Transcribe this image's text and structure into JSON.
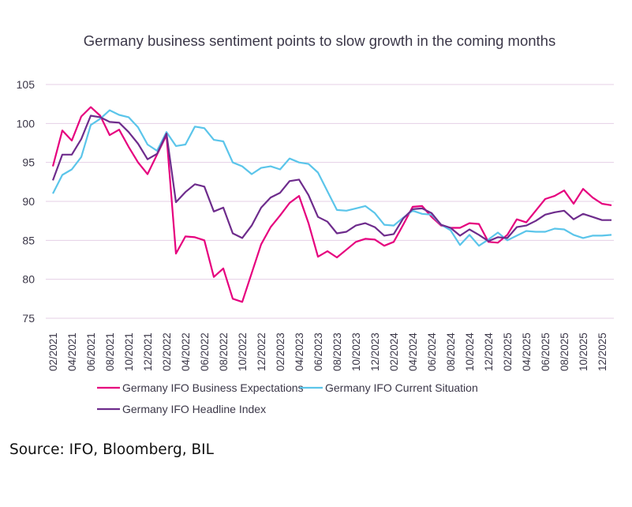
{
  "chart_data": {
    "type": "line",
    "title": "Germany business sentiment points to slow growth in the coming months",
    "xlabel": "",
    "ylabel": "",
    "ylim": [
      75,
      105
    ],
    "yticks": [
      75,
      80,
      85,
      90,
      95,
      100,
      105
    ],
    "grid": true,
    "legend_position": "bottom",
    "x": [
      "02/2021",
      "03/2021",
      "04/2021",
      "05/2021",
      "06/2021",
      "07/2021",
      "08/2021",
      "09/2021",
      "10/2021",
      "11/2021",
      "12/2021",
      "01/2022",
      "02/2022",
      "03/2022",
      "04/2022",
      "05/2022",
      "06/2022",
      "07/2022",
      "08/2022",
      "09/2022",
      "10/2022",
      "11/2022",
      "12/2022",
      "01/2023",
      "02/2023",
      "03/2023",
      "04/2023",
      "05/2023",
      "06/2023",
      "07/2023",
      "08/2023",
      "09/2023",
      "10/2023",
      "11/2023",
      "12/2023",
      "01/2024",
      "02/2024",
      "03/2024",
      "04/2024",
      "05/2024",
      "06/2024",
      "07/2024",
      "08/2024",
      "09/2024",
      "10/2024",
      "11/2024",
      "12/2024",
      "01/2025",
      "02/2025",
      "03/2025",
      "04/2025",
      "05/2025",
      "06/2025",
      "07/2025",
      "08/2025",
      "09/2025",
      "10/2025",
      "11/2025",
      "12/2025",
      "01/2026"
    ],
    "xtick_labels": [
      "02/2021",
      "04/2021",
      "06/2021",
      "08/2021",
      "10/2021",
      "12/2021",
      "02/2022",
      "04/2022",
      "06/2022",
      "08/2022",
      "10/2022",
      "12/2022",
      "02/2023",
      "04/2023",
      "06/2023",
      "08/2023",
      "10/2023",
      "12/2023",
      "02/2024",
      "04/2024",
      "06/2024",
      "08/2024",
      "10/2024",
      "12/2024",
      "02/2025",
      "04/2025",
      "06/2025",
      "08/2025",
      "10/2025",
      "12/2025"
    ],
    "series": [
      {
        "name": "Germany IFO Business Expectations",
        "color": "#e6007e",
        "values": [
          94.5,
          99.1,
          97.8,
          100.9,
          102.1,
          101.0,
          98.5,
          99.2,
          97.0,
          95.0,
          93.5,
          96.0,
          98.5,
          83.3,
          85.5,
          85.4,
          85.0,
          80.3,
          81.4,
          77.5,
          77.1,
          80.8,
          84.5,
          86.7,
          88.2,
          89.8,
          90.7,
          87.2,
          82.9,
          83.6,
          82.8,
          83.8,
          84.8,
          85.2,
          85.1,
          84.3,
          84.8,
          87.0,
          89.3,
          89.4,
          88.0,
          86.9,
          86.6,
          86.6,
          87.2,
          87.1,
          84.8,
          84.7,
          85.7,
          87.7,
          87.3,
          88.8,
          90.3,
          90.7,
          91.4,
          89.7,
          91.6,
          90.5,
          89.7,
          89.5
        ]
      },
      {
        "name": "Germany IFO Current Situation",
        "color": "#5bc5ea",
        "values": [
          91.0,
          93.4,
          94.1,
          95.7,
          99.8,
          100.6,
          101.7,
          101.1,
          100.8,
          99.5,
          97.3,
          96.5,
          98.9,
          97.1,
          97.3,
          99.6,
          99.4,
          97.9,
          97.7,
          95.0,
          94.5,
          93.5,
          94.3,
          94.5,
          94.1,
          95.5,
          95.0,
          94.8,
          93.7,
          91.3,
          88.9,
          88.8,
          89.1,
          89.4,
          88.5,
          87.0,
          86.9,
          87.9,
          88.8,
          88.4,
          88.3,
          87.0,
          86.3,
          84.4,
          85.7,
          84.3,
          85.1,
          86.0,
          85.0,
          85.6,
          86.2,
          86.1,
          86.1,
          86.5,
          86.4,
          85.7,
          85.3,
          85.6,
          85.6,
          85.7
        ]
      },
      {
        "name": "Germany IFO Headline Index",
        "color": "#6e2c8c",
        "values": [
          92.7,
          96.0,
          96.0,
          98.0,
          101.0,
          100.8,
          100.2,
          100.1,
          98.9,
          97.4,
          95.4,
          96.1,
          98.7,
          89.9,
          91.2,
          92.2,
          91.9,
          88.7,
          89.2,
          85.9,
          85.3,
          86.9,
          89.2,
          90.5,
          91.1,
          92.6,
          92.8,
          90.8,
          88.0,
          87.4,
          85.9,
          86.1,
          86.9,
          87.2,
          86.7,
          85.6,
          85.8,
          87.8,
          89.0,
          89.1,
          88.5,
          87.0,
          86.6,
          85.6,
          86.4,
          85.7,
          84.9,
          85.4,
          85.3,
          86.7,
          86.9,
          87.5,
          88.3,
          88.6,
          88.8,
          87.7,
          88.4,
          88.0,
          87.6,
          87.6
        ]
      }
    ]
  },
  "source_note": "Source: IFO, Bloomberg, BIL"
}
